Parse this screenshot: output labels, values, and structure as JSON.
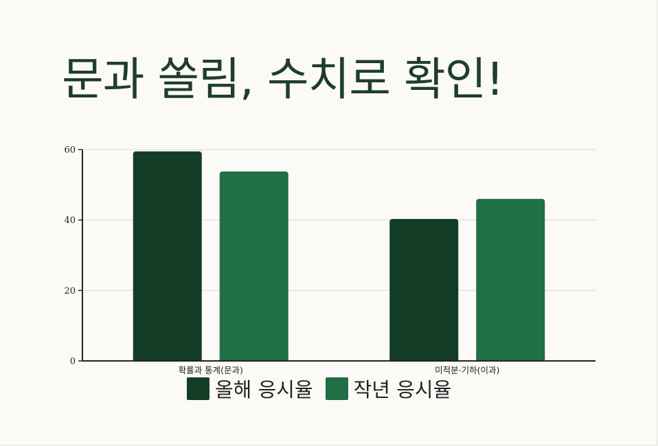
{
  "title": "문과 쏠림, 수치로 확인!",
  "colors": {
    "background": "#fbfaf7",
    "title": "#1f3d2e",
    "series_this_year": "#133d26",
    "series_last_year": "#216f44",
    "grid": "#d9d9d6",
    "axis": "#222222"
  },
  "chart_data": {
    "type": "bar",
    "categories": [
      "확률과 통계(문과)",
      "미적분·기하(이과)"
    ],
    "series": [
      {
        "name": "올해 응시율",
        "values": [
          59.5,
          40.3
        ],
        "color": "#133d26"
      },
      {
        "name": "작년 응시율",
        "values": [
          53.8,
          46.0
        ],
        "color": "#216f44"
      }
    ],
    "ylim": [
      0,
      60
    ],
    "yticks": [
      0,
      20,
      40,
      60
    ],
    "grid": true,
    "legend_position": "bottom",
    "xlabel": "",
    "ylabel": ""
  }
}
